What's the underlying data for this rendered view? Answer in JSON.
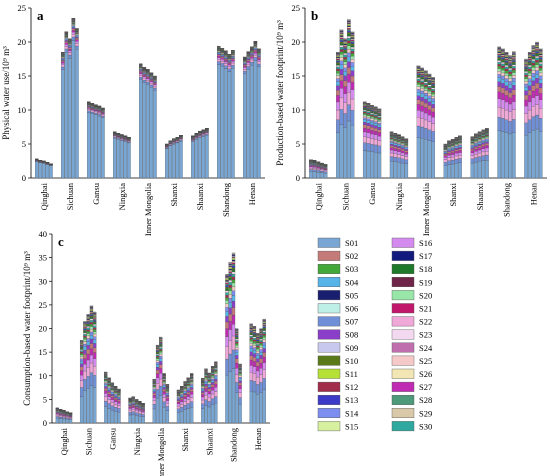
{
  "chart_data": [
    {
      "type": "bar",
      "panel_label": "a",
      "ylabel": "Physical water use/10⁹ m³",
      "ylim": [
        0,
        25
      ],
      "yticks": [
        0,
        5,
        10,
        15,
        20,
        25
      ],
      "categories": [
        "Qinghai",
        "Sichuan",
        "Gansu",
        "Ningxia",
        "Inner Mongolia",
        "Shanxi",
        "Shaanxi",
        "Shandong",
        "Henan"
      ],
      "bars_per_category": 5,
      "totals": [
        [
          2.8,
          2.6,
          2.5,
          2.3,
          2.1
        ],
        [
          18.5,
          21.5,
          20.5,
          23.5,
          22.0
        ],
        [
          11.2,
          11.0,
          10.8,
          10.6,
          10.3
        ],
        [
          6.8,
          6.6,
          6.4,
          6.2,
          6.0
        ],
        [
          16.8,
          16.3,
          16.0,
          15.5,
          15.0
        ],
        [
          5.0,
          5.5,
          5.8,
          6.0,
          6.3
        ],
        [
          6.2,
          6.6,
          6.9,
          7.1,
          7.3
        ],
        [
          19.4,
          19.1,
          18.7,
          18.2,
          18.8
        ],
        [
          17.8,
          18.6,
          19.3,
          20.1,
          19.0
        ]
      ],
      "base_share": 0.86
    },
    {
      "type": "bar",
      "panel_label": "b",
      "ylabel": "Production-based water footprint/10⁹ m³",
      "ylim": [
        0,
        25
      ],
      "yticks": [
        0,
        5,
        10,
        15,
        20,
        25
      ],
      "categories": [
        "Qinghai",
        "Sichuan",
        "Gansu",
        "Ningxia",
        "Inner Mongolia",
        "Shanxi",
        "Shaanxi",
        "Shandong",
        "Henan"
      ],
      "bars_per_category": 5,
      "totals": [
        [
          2.7,
          2.6,
          2.4,
          2.2,
          2.0
        ],
        [
          18.5,
          21.8,
          20.5,
          23.3,
          21.5
        ],
        [
          11.2,
          11.0,
          10.7,
          10.5,
          10.2
        ],
        [
          6.8,
          6.6,
          6.4,
          6.1,
          5.8
        ],
        [
          16.5,
          16.2,
          15.8,
          15.3,
          14.8
        ],
        [
          5.0,
          5.5,
          5.7,
          6.0,
          6.2
        ],
        [
          6.1,
          6.5,
          6.8,
          7.1,
          7.3
        ],
        [
          19.3,
          19.0,
          18.5,
          18.0,
          18.6
        ],
        [
          17.5,
          18.5,
          19.5,
          20.0,
          19.0
        ]
      ],
      "base_share": 0.36
    },
    {
      "type": "bar",
      "panel_label": "c",
      "ylabel": "Consumption-based water footprint/10⁹ m³",
      "ylim": [
        0,
        40
      ],
      "yticks": [
        0,
        5,
        10,
        15,
        20,
        25,
        30,
        35,
        40
      ],
      "categories": [
        "Qinghai",
        "Sichuan",
        "Gansu",
        "Ningxia",
        "Inner Mongolia",
        "Shanxi",
        "Shaanxi",
        "Shandong",
        "Henan"
      ],
      "bars_per_category": 5,
      "totals": [
        [
          3.2,
          2.9,
          2.7,
          2.4,
          2.2
        ],
        [
          17.5,
          21.5,
          23.0,
          24.8,
          23.5
        ],
        [
          10.8,
          9.6,
          8.5,
          7.8,
          7.2
        ],
        [
          5.3,
          5.6,
          5.0,
          4.6,
          4.2
        ],
        [
          9.3,
          16.5,
          18.2,
          10.5,
          8.2
        ],
        [
          7.0,
          7.8,
          8.8,
          9.6,
          10.5
        ],
        [
          9.5,
          11.5,
          10.6,
          12.0,
          13.0
        ],
        [
          31.5,
          34.0,
          36.0,
          20.0,
          12.5
        ],
        [
          21.0,
          20.5,
          19.0,
          20.0,
          22.0
        ]
      ],
      "base_share": 0.32
    }
  ],
  "legend": {
    "items": [
      {
        "label": "S01",
        "color": "#79a6d2"
      },
      {
        "label": "S02",
        "color": "#c47a78"
      },
      {
        "label": "S03",
        "color": "#42a83a"
      },
      {
        "label": "S04",
        "color": "#56b4e9"
      },
      {
        "label": "S05",
        "color": "#1a1e6e"
      },
      {
        "label": "S06",
        "color": "#bff0e8"
      },
      {
        "label": "S07",
        "color": "#6f8fd6"
      },
      {
        "label": "S08",
        "color": "#8b3fc9"
      },
      {
        "label": "S09",
        "color": "#c8c8ee"
      },
      {
        "label": "S10",
        "color": "#5a7a1a"
      },
      {
        "label": "S11",
        "color": "#b5e035"
      },
      {
        "label": "S12",
        "color": "#a12d4a"
      },
      {
        "label": "S13",
        "color": "#3b3bc8"
      },
      {
        "label": "S14",
        "color": "#7c8ef0"
      },
      {
        "label": "S15",
        "color": "#d7f0a0"
      },
      {
        "label": "S16",
        "color": "#d58af0"
      },
      {
        "label": "S17",
        "color": "#131a7e"
      },
      {
        "label": "S18",
        "color": "#1e7a2a"
      },
      {
        "label": "S19",
        "color": "#6e2548"
      },
      {
        "label": "S20",
        "color": "#98e6a8"
      },
      {
        "label": "S21",
        "color": "#c2186b"
      },
      {
        "label": "S22",
        "color": "#f0a8d8"
      },
      {
        "label": "S23",
        "color": "#f3d9ef"
      },
      {
        "label": "S24",
        "color": "#c06fae"
      },
      {
        "label": "S25",
        "color": "#f6c9c9"
      },
      {
        "label": "S26",
        "color": "#f3e6b5"
      },
      {
        "label": "S27",
        "color": "#bf2bb3"
      },
      {
        "label": "S28",
        "color": "#4d9a7a"
      },
      {
        "label": "S29",
        "color": "#d9c9a8"
      },
      {
        "label": "S30",
        "color": "#2fa89f"
      }
    ]
  }
}
